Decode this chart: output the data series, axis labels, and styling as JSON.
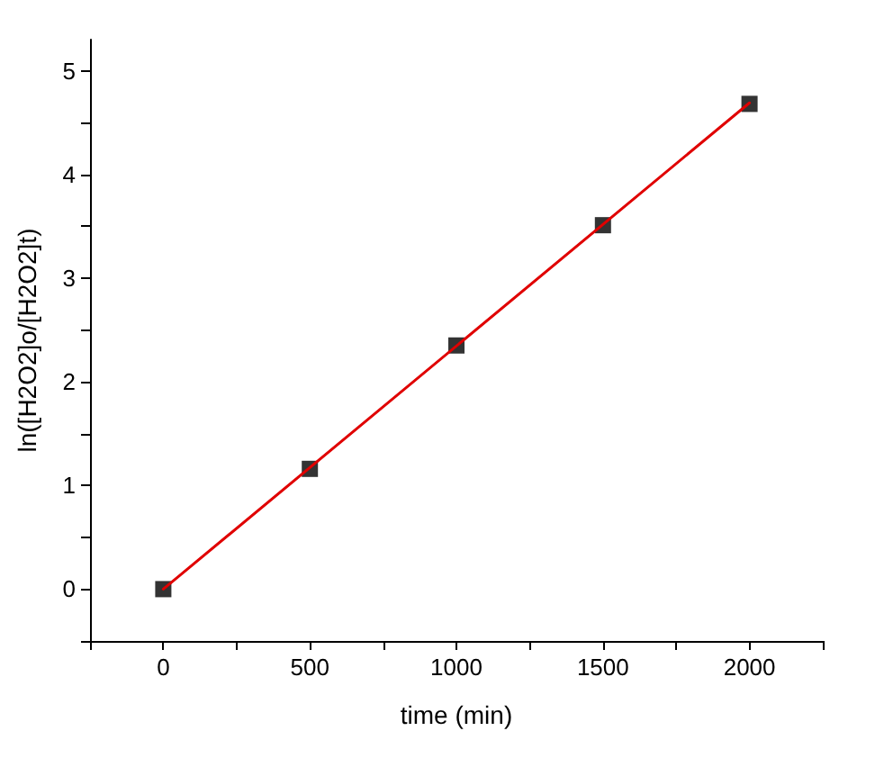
{
  "chart_data": {
    "type": "scatter",
    "xlabel": "time (min)",
    "ylabel": "ln([H2O2]o/[H2O2]t)",
    "x": [
      0,
      500,
      1000,
      1500,
      2000
    ],
    "series": [
      {
        "color": "#000000",
        "marker": "square",
        "values": [
          0,
          1.16,
          2.35,
          3.51,
          4.68
        ]
      },
      {
        "type": "line",
        "color": "#e00000",
        "marker": "none",
        "line_style": "solid",
        "x": [
          0,
          2000
        ],
        "values": [
          0,
          4.69
        ]
      }
    ],
    "xlim": [
      -250,
      2250
    ],
    "xticks": [
      {
        "value": -250,
        "label": null
      },
      0,
      {
        "value": 250,
        "label": null
      },
      500,
      {
        "value": 750,
        "label": null
      },
      1000,
      {
        "value": 1250,
        "label": null
      },
      1500,
      {
        "value": 1750,
        "label": null
      },
      2000,
      {
        "value": 2250,
        "label": null
      }
    ],
    "ylim": [
      -0.5,
      5.3
    ],
    "yticks": [
      {
        "value": -0.5,
        "label": null
      },
      0,
      {
        "value": 0.5,
        "label": null
      },
      1,
      {
        "value": 1.5,
        "label": null
      },
      2,
      {
        "value": 2.5,
        "label": null
      },
      3,
      {
        "value": 3.5,
        "label": null
      },
      4,
      {
        "value": 4.5,
        "label": null
      },
      5
    ],
    "grid": false
  }
}
